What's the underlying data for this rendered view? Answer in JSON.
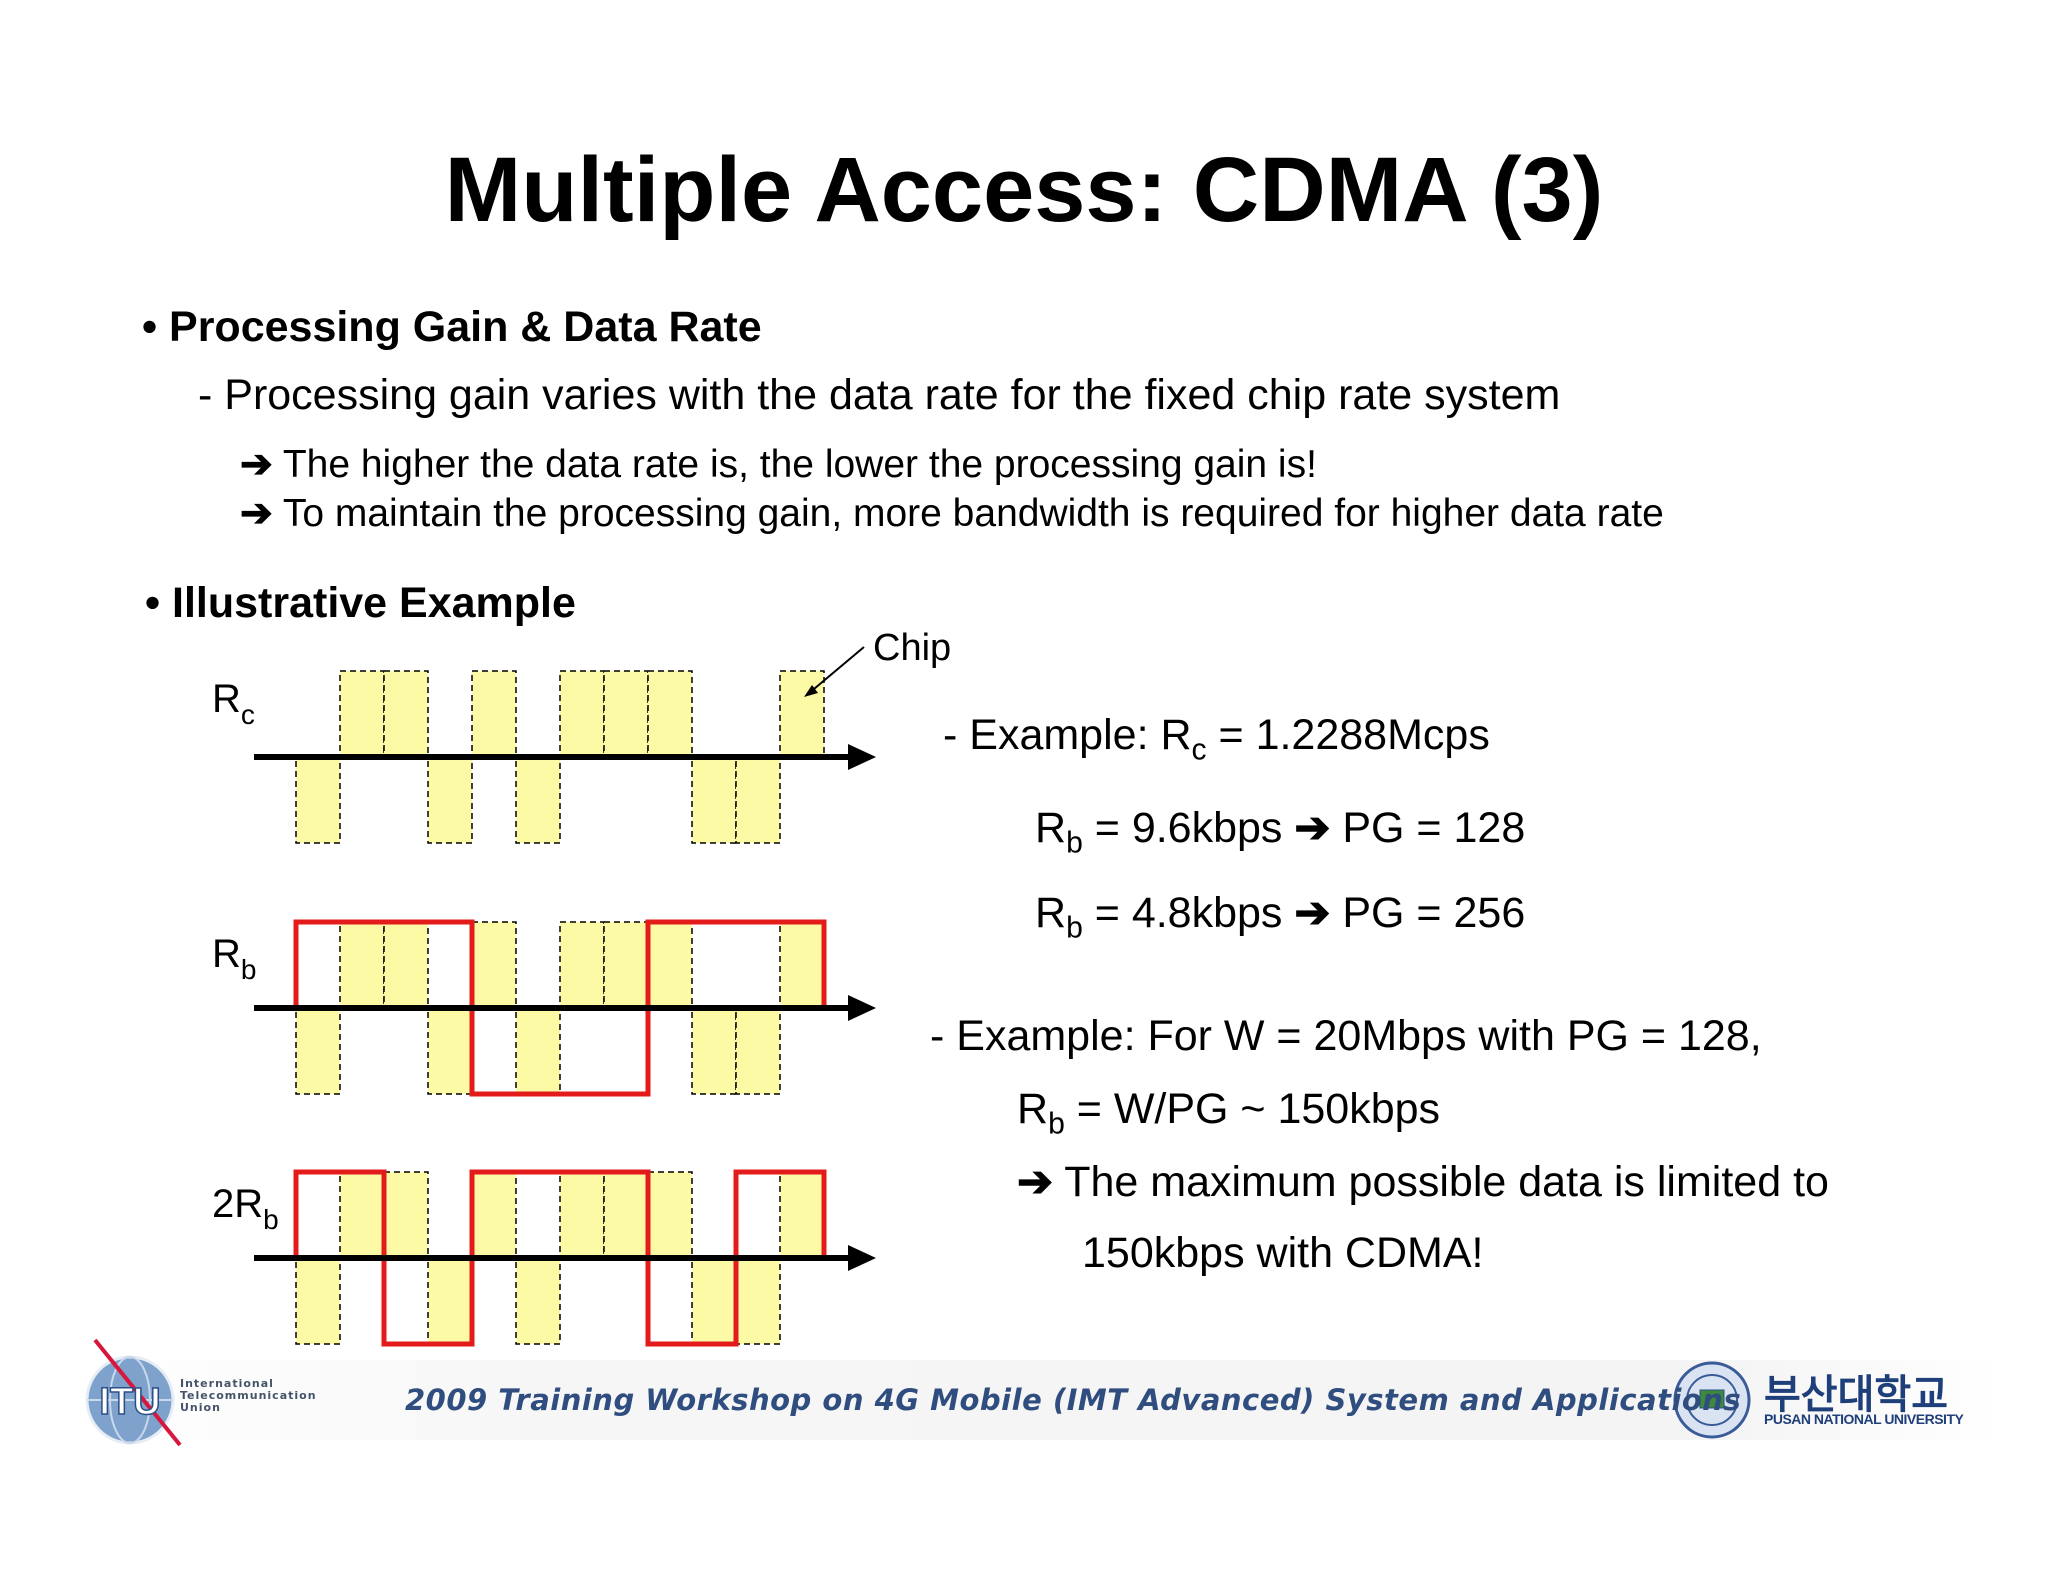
{
  "title": "Multiple Access: CDMA (3)",
  "section1": {
    "heading": "Processing Gain & Data Rate",
    "sub": "- Processing gain varies with the data rate for the fixed chip rate system",
    "points": [
      "The higher the data rate is, the lower the processing gain is!",
      "To maintain the processing gain, more bandwidth is required for higher data rate"
    ]
  },
  "section2": {
    "heading": "Illustrative Example"
  },
  "diagram": {
    "chip_label": "Chip",
    "rows": [
      {
        "label": "R",
        "sub": "c",
        "chips": [
          -1,
          1,
          1,
          -1,
          1,
          -1,
          1,
          1,
          1,
          -1,
          -1,
          1
        ]
      },
      {
        "label": "R",
        "sub": "b",
        "prefix": "",
        "chips": [
          -1,
          1,
          1,
          -1,
          1,
          -1,
          1,
          1,
          1,
          -1,
          -1,
          1
        ],
        "bits": [
          1,
          -1,
          1
        ]
      },
      {
        "label": "R",
        "sub": "b",
        "prefix": "2",
        "chips": [
          -1,
          1,
          1,
          -1,
          1,
          -1,
          1,
          1,
          1,
          -1,
          -1,
          1
        ],
        "bits": [
          1,
          -1,
          1,
          1,
          -1,
          1
        ]
      }
    ],
    "colors": {
      "chip_fill": "#fdfaa6",
      "data_line": "#e31b1b",
      "axis": "#000000"
    }
  },
  "examples": {
    "ex1_prefix": "- Example: R",
    "ex1_sub": "c",
    "ex1_value": " = 1.2288Mcps",
    "rb1_label": "R",
    "rb1_sub": "b",
    "rb1_value": " = 9.6kbps ",
    "rb1_result": " PG = 128",
    "rb2_label": "R",
    "rb2_sub": "b",
    "rb2_value": " = 4.8kbps ",
    "rb2_result": " PG = 256",
    "ex2_line1": "- Example: For W = 20Mbps with PG = 128,",
    "ex2_rb": "R",
    "ex2_rb_sub": "b",
    "ex2_rb_value": " = W/PG ~ 150kbps",
    "ex2_conclusion1": " The maximum possible data is limited to",
    "ex2_conclusion2": "150kbps with CDMA!"
  },
  "footer": {
    "workshop": "2009 Training Workshop on 4G Mobile (IMT Advanced) System and Applications",
    "itu_logo": "ITU",
    "itu_name": [
      "International",
      "Telecommunication",
      "Union"
    ],
    "pnu_korean": "부산대학교",
    "pnu_english": "PUSAN NATIONAL UNIVERSITY"
  },
  "arrow_glyph": "➔"
}
